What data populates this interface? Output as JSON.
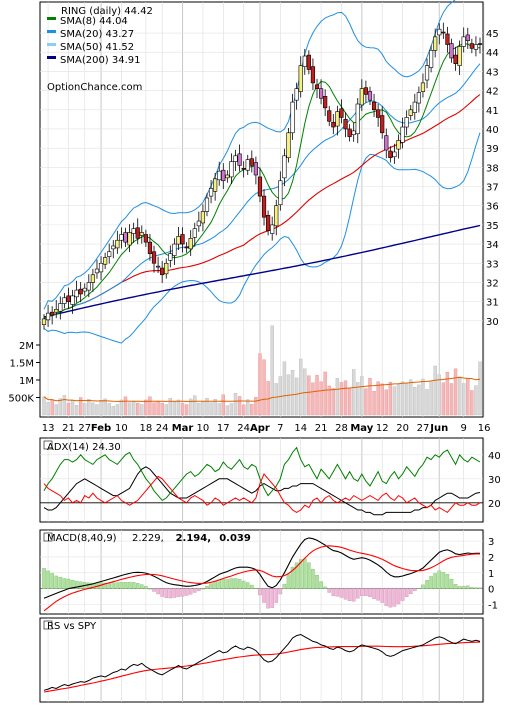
{
  "chart_data": [
    {
      "type": "candlestick",
      "title": "RING (daily) 44.42",
      "watermark": "OptionChance.com",
      "legend_position": "top-left",
      "ylim": [
        29.0,
        46.2
      ],
      "y_ticks": [
        30,
        31,
        32,
        33,
        34,
        35,
        36,
        37,
        38,
        39,
        40,
        41,
        42,
        43,
        44,
        45
      ],
      "x_tick_labels": [
        "13",
        "21",
        "27",
        "Feb",
        "10",
        "18",
        "24",
        "Mar",
        "10",
        "17",
        "24",
        "Apr",
        "7",
        "14",
        "21",
        "28",
        "May",
        "12",
        "20",
        "27",
        "Jun",
        "9",
        "16"
      ],
      "x_tick_index": [
        1,
        6,
        10,
        14,
        19,
        25,
        29,
        34,
        39,
        44,
        49,
        53,
        58,
        63,
        68,
        73,
        78,
        83,
        88,
        93,
        97,
        103,
        108
      ],
      "x_month_labels": [
        "Feb",
        "Mar",
        "Apr",
        "May",
        "Jun"
      ],
      "legend": [
        {
          "label": "SMA(8) 44.04",
          "color": "#008000"
        },
        {
          "label": "SMA(20) 43.27",
          "color": "#1e90e0"
        },
        {
          "label": "SMA(50) 41.52",
          "color": "#87cefa"
        },
        {
          "label": "SMA(200) 34.91",
          "color": "#00008b"
        }
      ],
      "close": [
        30.1,
        30.4,
        30.3,
        30.6,
        30.9,
        31.2,
        31.0,
        31.3,
        31.6,
        31.4,
        31.7,
        32.0,
        32.4,
        32.7,
        33.0,
        33.3,
        33.6,
        33.9,
        34.2,
        34.5,
        34.1,
        34.6,
        34.8,
        34.3,
        34.6,
        34.1,
        33.5,
        33.0,
        32.8,
        32.4,
        33.0,
        33.5,
        34.0,
        34.4,
        34.0,
        33.8,
        34.3,
        34.8,
        35.2,
        35.7,
        36.4,
        36.9,
        37.4,
        37.8,
        37.3,
        37.6,
        38.3,
        38.6,
        38.1,
        37.9,
        38.4,
        38.1,
        37.6,
        36.5,
        35.4,
        34.7,
        35.0,
        36.0,
        37.3,
        38.6,
        39.8,
        41.4,
        42.1,
        43.3,
        43.8,
        43.1,
        42.4,
        42.1,
        41.6,
        41.1,
        40.4,
        40.1,
        40.9,
        40.6,
        40.0,
        39.6,
        39.9,
        41.3,
        42.1,
        41.8,
        41.5,
        41.0,
        40.6,
        39.8,
        38.9,
        38.5,
        38.8,
        39.4,
        40.1,
        40.6,
        41.0,
        41.4,
        41.9,
        42.4,
        43.3,
        44.1,
        44.8,
        45.2,
        45.0,
        44.4,
        43.7,
        43.4,
        44.3,
        44.8,
        44.6,
        44.2,
        44.4,
        44.42
      ],
      "volume": [
        520000,
        360000,
        440000,
        300000,
        470000,
        560000,
        340000,
        410000,
        280000,
        500000,
        330000,
        450000,
        350000,
        300000,
        420000,
        460000,
        330000,
        250000,
        300000,
        430000,
        520000,
        350000,
        400000,
        340000,
        300000,
        430000,
        520000,
        350000,
        400000,
        340000,
        300000,
        480000,
        380000,
        430000,
        330000,
        300000,
        460000,
        550000,
        340000,
        400000,
        480000,
        350000,
        450000,
        330000,
        580000,
        270000,
        330000,
        620000,
        530000,
        290000,
        440000,
        310000,
        510000,
        1750000,
        1580000,
        960000,
        2550000,
        900000,
        1100000,
        1520000,
        1150000,
        1280000,
        1060000,
        1600000,
        1320000,
        1120000,
        920000,
        1140000,
        950000,
        1230000,
        830000,
        760000,
        1050000,
        930000,
        980000,
        780000,
        1300000,
        930000,
        1100000,
        750000,
        1050000,
        680000,
        950000,
        890000,
        720000,
        940000,
        810000,
        870000,
        950000,
        890000,
        1010000,
        790000,
        860000,
        1030000,
        730000,
        960000,
        1400000,
        1150000,
        920000,
        1220000,
        900000,
        1320000,
        1090000,
        900000,
        1050000,
        700000,
        840000,
        1520000
      ],
      "vol_y_ticks": [
        {
          "label": "500K",
          "v": 500000
        },
        {
          "label": "1M",
          "v": 1000000
        },
        {
          "label": "1.5M",
          "v": 1500000
        },
        {
          "label": "2M",
          "v": 2000000
        }
      ]
    },
    {
      "type": "line",
      "label": "ADX(14) 24.30",
      "ylim": [
        12,
        47
      ],
      "y_ticks": [
        20,
        30,
        40
      ],
      "reference_line": 20,
      "series": [
        {
          "name": "ADX",
          "color": "#000000",
          "values": [
            18,
            17,
            17,
            18,
            20,
            22,
            24,
            26,
            28,
            29,
            30,
            29,
            28,
            27,
            26,
            25,
            24,
            23,
            23,
            24,
            25,
            26,
            29,
            32,
            34,
            35,
            34,
            32,
            30,
            28,
            26,
            24,
            23,
            22,
            22,
            22,
            23,
            24,
            25,
            26,
            27,
            28,
            29,
            30,
            30,
            30,
            29,
            28,
            27,
            26,
            25,
            24,
            25,
            27,
            28,
            27,
            26,
            25,
            25,
            26,
            26,
            27,
            27,
            28,
            28,
            28,
            28,
            27,
            26,
            25,
            24,
            23,
            22,
            21,
            20,
            19,
            18,
            17,
            17,
            16,
            16,
            15,
            15,
            15,
            16,
            16,
            16,
            16,
            16,
            16,
            16,
            17,
            17,
            18,
            18,
            19,
            21,
            22,
            23,
            24,
            24,
            23,
            22,
            22,
            22,
            23,
            24,
            24.3
          ]
        },
        {
          "name": "+DI",
          "color": "#008000",
          "values": [
            25,
            28,
            30,
            33,
            36,
            38,
            38,
            37,
            38,
            40,
            38,
            37,
            36,
            38,
            39,
            40,
            38,
            37,
            36,
            38,
            40,
            41,
            38,
            36,
            33,
            30,
            28,
            25,
            23,
            21,
            22,
            24,
            26,
            28,
            30,
            32,
            33,
            31,
            32,
            34,
            36,
            35,
            33,
            34,
            37,
            35,
            34,
            36,
            38,
            35,
            34,
            36,
            35,
            30,
            26,
            23,
            25,
            27,
            30,
            36,
            38,
            41,
            43,
            38,
            35,
            36,
            33,
            30,
            34,
            32,
            30,
            33,
            36,
            33,
            30,
            33,
            30,
            29,
            32,
            29,
            27,
            30,
            33,
            29,
            28,
            31,
            33,
            30,
            32,
            35,
            33,
            31,
            34,
            36,
            39,
            38,
            40,
            39,
            41,
            42,
            39,
            36,
            40,
            38,
            37,
            39,
            38,
            37
          ]
        },
        {
          "name": "-DI",
          "color": "#ff0000",
          "values": [
            28,
            26,
            25,
            24,
            23,
            21,
            22,
            20,
            21,
            20,
            23,
            22,
            24,
            22,
            21,
            20,
            21,
            22,
            23,
            21,
            20,
            19,
            20,
            21,
            23,
            25,
            27,
            29,
            31,
            30,
            28,
            26,
            24,
            22,
            21,
            20,
            22,
            23,
            22,
            21,
            19,
            20,
            22,
            21,
            19,
            20,
            21,
            22,
            21,
            22,
            21,
            20,
            22,
            28,
            32,
            30,
            28,
            26,
            23,
            20,
            19,
            17,
            16,
            17,
            19,
            18,
            21,
            22,
            20,
            22,
            23,
            21,
            20,
            21,
            22,
            21,
            23,
            22,
            21,
            22,
            23,
            22,
            21,
            23,
            24,
            22,
            21,
            23,
            22,
            20,
            21,
            22,
            20,
            19,
            18,
            19,
            17,
            18,
            17,
            16,
            18,
            20,
            19,
            19,
            20,
            19,
            19,
            20
          ]
        }
      ]
    },
    {
      "type": "line",
      "label": "MACD(8,40,9)",
      "value_labels": [
        {
          "text": "2.229,",
          "color": "#000000"
        },
        {
          "text": "2.194,",
          "color": "#ff0000"
        },
        {
          "text": "0.039",
          "color": "#0000cc"
        }
      ],
      "ylim": [
        -1.6,
        3.7
      ],
      "y_ticks": [
        -1,
        0,
        1,
        2,
        3
      ],
      "series": [
        {
          "name": "MACD",
          "color": "#000000",
          "values": [
            -0.6,
            -0.5,
            -0.4,
            -0.3,
            -0.2,
            -0.1,
            0.0,
            0.05,
            0.1,
            0.15,
            0.2,
            0.25,
            0.3,
            0.38,
            0.45,
            0.52,
            0.6,
            0.67,
            0.75,
            0.83,
            0.9,
            0.96,
            1.02,
            1.03,
            1.02,
            0.98,
            0.9,
            0.78,
            0.65,
            0.5,
            0.38,
            0.3,
            0.25,
            0.22,
            0.18,
            0.15,
            0.16,
            0.2,
            0.25,
            0.33,
            0.45,
            0.6,
            0.75,
            0.9,
            1.0,
            1.08,
            1.2,
            1.3,
            1.35,
            1.35,
            1.35,
            1.3,
            1.2,
            0.9,
            0.5,
            0.15,
            0.05,
            0.2,
            0.55,
            1.0,
            1.5,
            2.0,
            2.4,
            2.8,
            3.1,
            3.2,
            3.15,
            3.05,
            2.9,
            2.75,
            2.55,
            2.4,
            2.35,
            2.25,
            2.1,
            1.95,
            1.85,
            1.9,
            1.95,
            1.9,
            1.8,
            1.65,
            1.5,
            1.3,
            1.05,
            0.85,
            0.75,
            0.75,
            0.8,
            0.88,
            0.95,
            1.05,
            1.15,
            1.3,
            1.55,
            1.8,
            2.05,
            2.3,
            2.4,
            2.45,
            2.35,
            2.2,
            2.15,
            2.2,
            2.25,
            2.22,
            2.23,
            2.229
          ]
        },
        {
          "name": "Signal",
          "color": "#ff0000",
          "values": [
            -1.4,
            -1.2,
            -1.0,
            -0.8,
            -0.65,
            -0.5,
            -0.38,
            -0.28,
            -0.2,
            -0.12,
            -0.05,
            0.02,
            0.08,
            0.15,
            0.22,
            0.3,
            0.37,
            0.44,
            0.51,
            0.58,
            0.65,
            0.71,
            0.77,
            0.82,
            0.86,
            0.89,
            0.9,
            0.89,
            0.86,
            0.81,
            0.74,
            0.67,
            0.6,
            0.54,
            0.48,
            0.42,
            0.38,
            0.35,
            0.33,
            0.33,
            0.35,
            0.4,
            0.47,
            0.55,
            0.64,
            0.72,
            0.8,
            0.9,
            0.98,
            1.05,
            1.11,
            1.16,
            1.18,
            1.15,
            1.05,
            0.92,
            0.8,
            0.75,
            0.76,
            0.82,
            0.95,
            1.15,
            1.38,
            1.65,
            1.92,
            2.18,
            2.38,
            2.52,
            2.62,
            2.68,
            2.7,
            2.68,
            2.65,
            2.6,
            2.52,
            2.43,
            2.35,
            2.28,
            2.23,
            2.18,
            2.12,
            2.05,
            1.96,
            1.85,
            1.72,
            1.58,
            1.45,
            1.35,
            1.27,
            1.2,
            1.15,
            1.13,
            1.13,
            1.15,
            1.22,
            1.32,
            1.45,
            1.6,
            1.75,
            1.88,
            1.98,
            2.03,
            2.06,
            2.1,
            2.14,
            2.17,
            2.19,
            2.194
          ]
        }
      ]
    },
    {
      "type": "line",
      "label": "RS vs SPY",
      "series": [
        {
          "name": "RS",
          "color": "#000000",
          "values": [
            1.5,
            2.5,
            4,
            3,
            5,
            6.5,
            5.5,
            7,
            8,
            9,
            8.5,
            10,
            12,
            13,
            14,
            13,
            15,
            17,
            18,
            20,
            19,
            22,
            24,
            23,
            25,
            22,
            20,
            18,
            16,
            15,
            17,
            19,
            21,
            23,
            21,
            20,
            22,
            24,
            26,
            28,
            30,
            32,
            34,
            36,
            34,
            35,
            38,
            40,
            38,
            37,
            39,
            38,
            36,
            32,
            28,
            26,
            27,
            30,
            34,
            38,
            42,
            47,
            49,
            50,
            48,
            46,
            44,
            43,
            41,
            40,
            38,
            37,
            39,
            38,
            36,
            35,
            36,
            39,
            41,
            40,
            39,
            38,
            37,
            35,
            32,
            31,
            32,
            34,
            36,
            37,
            38,
            39,
            40,
            41,
            43,
            45,
            47,
            48,
            47,
            45,
            43,
            42,
            44,
            46,
            45,
            44,
            45,
            44
          ]
        },
        {
          "name": "RS average",
          "color": "#ff0000",
          "values": [
            0,
            0.6,
            1.2,
            1.8,
            2.4,
            3.0,
            3.6,
            4.3,
            5.0,
            5.7,
            6.4,
            7.1,
            7.8,
            8.6,
            9.4,
            10.2,
            11.0,
            11.9,
            12.8,
            13.7,
            14.6,
            15.5,
            16.4,
            17.2,
            18.0,
            18.6,
            19.2,
            19.6,
            20.0,
            20.3,
            20.6,
            21.0,
            21.4,
            21.8,
            22.2,
            22.6,
            23.1,
            23.6,
            24.2,
            24.8,
            25.4,
            26.1,
            26.8,
            27.5,
            28.1,
            28.7,
            29.3,
            29.9,
            30.4,
            30.9,
            31.4,
            31.8,
            32.1,
            32.3,
            32.4,
            32.5,
            32.7,
            33.0,
            33.5,
            34.1,
            34.8,
            35.5,
            36.2,
            36.9,
            37.5,
            38.0,
            38.4,
            38.7,
            38.9,
            39.1,
            39.2,
            39.3,
            39.4,
            39.5,
            39.5,
            39.5,
            39.5,
            39.6,
            39.7,
            39.8,
            39.8,
            39.8,
            39.8,
            39.7,
            39.6,
            39.5,
            39.4,
            39.4,
            39.4,
            39.5,
            39.6,
            39.8,
            40.0,
            40.2,
            40.5,
            40.8,
            41.1,
            41.5,
            41.8,
            42.1,
            42.3,
            42.5,
            42.7,
            42.9,
            43.1,
            43.2,
            43.3,
            43.4
          ]
        }
      ]
    }
  ]
}
